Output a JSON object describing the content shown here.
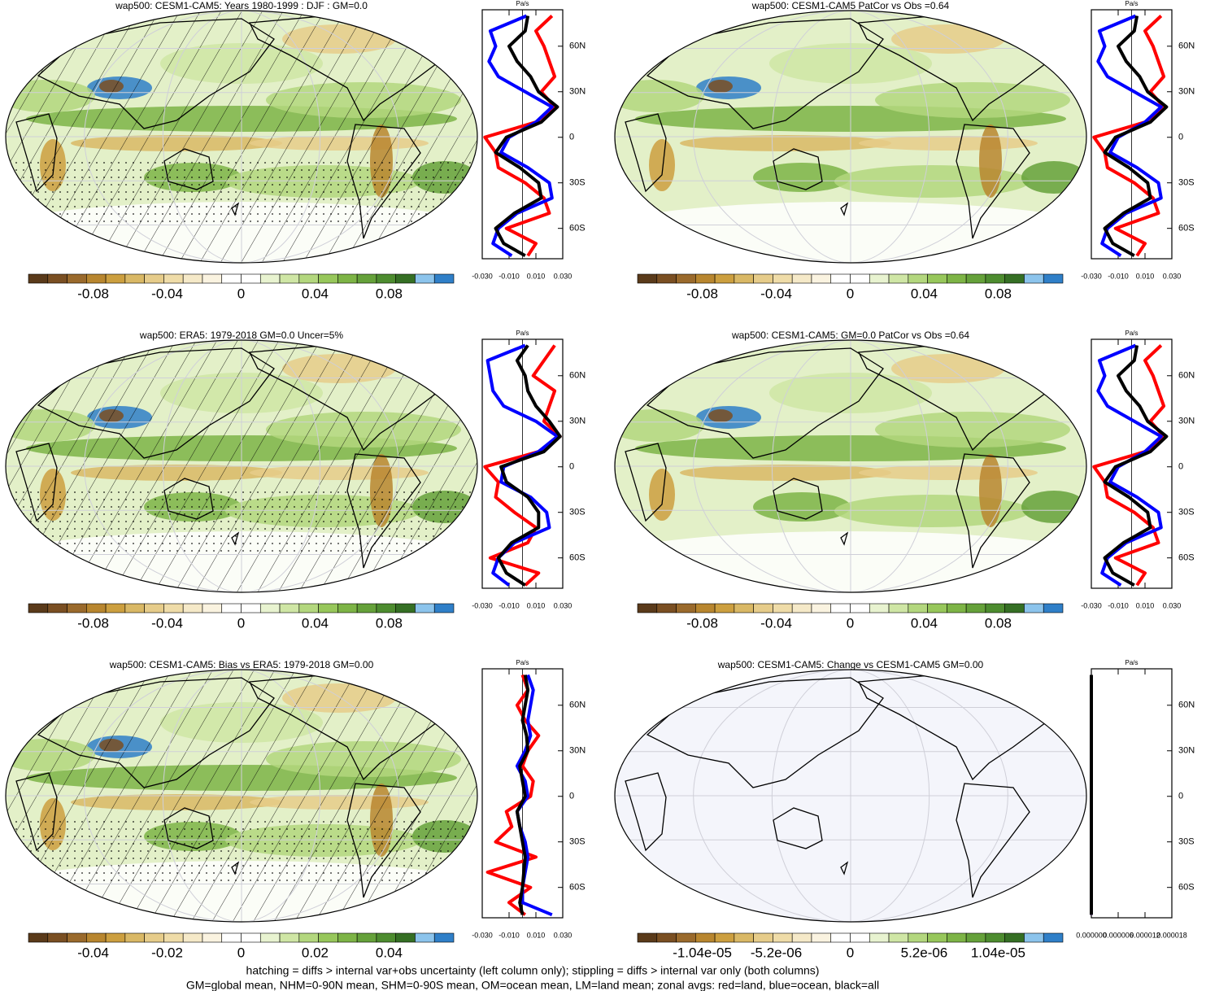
{
  "palette": [
    "#5a3a1a",
    "#7a4f22",
    "#9a6a2c",
    "#b8862f",
    "#cc9f3f",
    "#d9b865",
    "#e6cc8a",
    "#efdca8",
    "#f5e9c8",
    "#faf3e0",
    "#ffffff",
    "#ffffff",
    "#e8f3d0",
    "#cfe6a5",
    "#b3d77e",
    "#97c75b",
    "#7db446",
    "#65a13a",
    "#4d8c2f",
    "#356f24",
    "#8cc4ec",
    "#2f7fc8"
  ],
  "panels": [
    {
      "title": "wap500: CESM1-CAM5: Years 1980-1999 : DJF : GM=0.0",
      "field_shown": true,
      "hatching": true,
      "stippling": true,
      "colorbar": {
        "lim": [
          -0.115,
          0.115
        ],
        "ticks": [
          -0.08,
          -0.04,
          0,
          0.04,
          0.08
        ]
      },
      "profile": {
        "unit": "Pa/s",
        "xlim": [
          -0.03,
          0.03
        ],
        "ylim": [
          -80,
          84
        ],
        "xticks": [
          {
            "value": -0.03,
            "label": "-0.030"
          },
          {
            "value": -0.01,
            "label": "-0.010"
          },
          {
            "value": 0.01,
            "label": "0.010"
          },
          {
            "value": 0.03,
            "label": "0.030"
          }
        ],
        "yticks": [
          {
            "value": 60,
            "label": "60N"
          },
          {
            "value": 30,
            "label": "30N"
          },
          0,
          {
            "value": -30,
            "label": "30S"
          },
          {
            "value": -60,
            "label": "60S"
          }
        ],
        "lat": [
          80,
          70,
          60,
          50,
          40,
          30,
          20,
          10,
          0,
          -10,
          -20,
          -30,
          -40,
          -50,
          -60,
          -70,
          -78
        ],
        "series": [
          {
            "color": "#ff0000",
            "values": [
              0.022,
              0.01,
              0.016,
              0.02,
              0.024,
              0.014,
              0.024,
              0.01,
              -0.028,
              -0.02,
              -0.018,
              0.002,
              0.016,
              0.02,
              -0.012,
              0.01,
              0.004
            ]
          },
          {
            "color": "#0000ff",
            "values": [
              0.003,
              -0.024,
              -0.02,
              -0.025,
              -0.018,
              0.002,
              0.022,
              0.01,
              -0.01,
              -0.016,
              0.004,
              0.02,
              0.022,
              -0.004,
              -0.018,
              -0.022,
              -0.008
            ]
          },
          {
            "color": "#000000",
            "values": [
              0.004,
              0.002,
              -0.01,
              -0.004,
              0.006,
              0.012,
              0.026,
              0.014,
              -0.012,
              -0.02,
              -0.002,
              0.012,
              0.014,
              -0.006,
              -0.02,
              -0.014,
              0.002
            ]
          }
        ]
      }
    },
    {
      "title": "wap500: CESM1-CAM5 PatCor vs Obs =0.64",
      "field_shown": true,
      "hatching": false,
      "stippling": false,
      "colorbar": {
        "lim": [
          -0.115,
          0.115
        ],
        "ticks": [
          -0.08,
          -0.04,
          0,
          0.04,
          0.08
        ]
      },
      "profile": {
        "unit": "Pa/s",
        "xlim": [
          -0.03,
          0.03
        ],
        "ylim": [
          -80,
          84
        ],
        "xticks": [
          {
            "value": -0.03,
            "label": "-0.030"
          },
          {
            "value": -0.01,
            "label": "-0.010"
          },
          {
            "value": 0.01,
            "label": "0.010"
          },
          {
            "value": 0.03,
            "label": "0.030"
          }
        ],
        "yticks": [
          {
            "value": 60,
            "label": "60N"
          },
          {
            "value": 30,
            "label": "30N"
          },
          0,
          {
            "value": -30,
            "label": "30S"
          },
          {
            "value": -60,
            "label": "60S"
          }
        ],
        "lat": [
          80,
          70,
          60,
          50,
          40,
          30,
          20,
          10,
          0,
          -10,
          -20,
          -30,
          -40,
          -50,
          -60,
          -70,
          -78
        ],
        "series": [
          {
            "color": "#ff0000",
            "values": [
              0.022,
              0.01,
              0.016,
              0.02,
              0.024,
              0.014,
              0.024,
              0.01,
              -0.028,
              -0.02,
              -0.018,
              0.002,
              0.016,
              0.02,
              -0.012,
              0.01,
              0.004
            ]
          },
          {
            "color": "#0000ff",
            "values": [
              0.003,
              -0.024,
              -0.02,
              -0.025,
              -0.018,
              0.002,
              0.022,
              0.01,
              -0.01,
              -0.016,
              0.004,
              0.02,
              0.022,
              -0.004,
              -0.018,
              -0.022,
              -0.008
            ]
          },
          {
            "color": "#000000",
            "values": [
              0.004,
              0.002,
              -0.01,
              -0.004,
              0.006,
              0.012,
              0.026,
              0.014,
              -0.012,
              -0.02,
              -0.002,
              0.012,
              0.014,
              -0.006,
              -0.02,
              -0.014,
              0.002
            ]
          }
        ]
      }
    },
    {
      "title": "wap500: ERA5: 1979-2018 GM=0.0 Uncer=5%",
      "field_shown": true,
      "hatching": true,
      "stippling": true,
      "colorbar": {
        "lim": [
          -0.115,
          0.115
        ],
        "ticks": [
          -0.08,
          -0.04,
          0,
          0.04,
          0.08
        ]
      },
      "profile": {
        "unit": "Pa/s",
        "xlim": [
          -0.03,
          0.03
        ],
        "ylim": [
          -80,
          84
        ],
        "xticks": [
          {
            "value": -0.03,
            "label": "-0.030"
          },
          {
            "value": -0.01,
            "label": "-0.010"
          },
          {
            "value": 0.01,
            "label": "0.010"
          },
          {
            "value": 0.03,
            "label": "0.030"
          }
        ],
        "yticks": [
          {
            "value": 60,
            "label": "60N"
          },
          {
            "value": 30,
            "label": "30N"
          },
          0,
          {
            "value": -30,
            "label": "30S"
          },
          {
            "value": -60,
            "label": "60S"
          }
        ],
        "lat": [
          80,
          70,
          60,
          50,
          40,
          30,
          20,
          10,
          0,
          -10,
          -20,
          -30,
          -40,
          -50,
          -60,
          -70,
          -78
        ],
        "series": [
          {
            "color": "#ff0000",
            "values": [
              0.024,
              0.016,
              0.008,
              0.024,
              0.02,
              0.016,
              0.028,
              0.012,
              -0.028,
              -0.018,
              -0.02,
              -0.006,
              0.01,
              0.004,
              -0.024,
              0.012,
              0.002
            ]
          },
          {
            "color": "#0000ff",
            "values": [
              0.002,
              -0.026,
              -0.024,
              -0.022,
              -0.014,
              0.01,
              0.026,
              0.012,
              -0.014,
              -0.016,
              0.006,
              0.018,
              0.02,
              -0.006,
              -0.018,
              -0.022,
              -0.01
            ]
          },
          {
            "color": "#000000",
            "values": [
              0.004,
              -0.004,
              0.002,
              0.004,
              0.01,
              0.02,
              0.028,
              0.016,
              -0.016,
              -0.012,
              0.004,
              0.012,
              0.012,
              -0.008,
              -0.018,
              -0.012,
              0.002
            ]
          }
        ]
      }
    },
    {
      "title": "wap500: CESM1-CAM5: GM=0.0 PatCor vs Obs =0.64",
      "field_shown": true,
      "hatching": false,
      "stippling": false,
      "colorbar": {
        "lim": [
          -0.115,
          0.115
        ],
        "ticks": [
          -0.08,
          -0.04,
          0,
          0.04,
          0.08
        ]
      },
      "profile": {
        "unit": "Pa/s",
        "xlim": [
          -0.03,
          0.03
        ],
        "ylim": [
          -80,
          84
        ],
        "xticks": [
          {
            "value": -0.03,
            "label": "-0.030"
          },
          {
            "value": -0.01,
            "label": "-0.010"
          },
          {
            "value": 0.01,
            "label": "0.010"
          },
          {
            "value": 0.03,
            "label": "0.030"
          }
        ],
        "yticks": [
          {
            "value": 60,
            "label": "60N"
          },
          {
            "value": 30,
            "label": "30N"
          },
          0,
          {
            "value": -30,
            "label": "30S"
          },
          {
            "value": -60,
            "label": "60S"
          }
        ],
        "lat": [
          80,
          70,
          60,
          50,
          40,
          30,
          20,
          10,
          0,
          -10,
          -20,
          -30,
          -40,
          -50,
          -60,
          -70,
          -78
        ],
        "series": [
          {
            "color": "#ff0000",
            "values": [
              0.022,
              0.01,
              0.016,
              0.02,
              0.024,
              0.014,
              0.024,
              0.01,
              -0.028,
              -0.02,
              -0.018,
              0.002,
              0.016,
              0.02,
              -0.012,
              0.01,
              0.004
            ]
          },
          {
            "color": "#0000ff",
            "values": [
              0.003,
              -0.024,
              -0.02,
              -0.025,
              -0.018,
              0.002,
              0.022,
              0.01,
              -0.01,
              -0.016,
              0.004,
              0.02,
              0.022,
              -0.004,
              -0.018,
              -0.022,
              -0.008
            ]
          },
          {
            "color": "#000000",
            "values": [
              0.004,
              0.002,
              -0.01,
              -0.004,
              0.006,
              0.012,
              0.026,
              0.014,
              -0.012,
              -0.02,
              -0.002,
              0.012,
              0.014,
              -0.006,
              -0.02,
              -0.014,
              0.002
            ]
          }
        ]
      }
    },
    {
      "title": "wap500: CESM1-CAM5: Bias vs ERA5: 1979-2018 GM=0.00",
      "field_shown": true,
      "hatching": true,
      "stippling": true,
      "colorbar": {
        "lim": [
          -0.0575,
          0.0575
        ],
        "ticks": [
          -0.04,
          -0.02,
          0,
          0.02,
          0.04
        ]
      },
      "profile": {
        "unit": "Pa/s",
        "xlim": [
          -0.03,
          0.03
        ],
        "ylim": [
          -80,
          84
        ],
        "xticks": [
          {
            "value": -0.03,
            "label": "-0.030"
          },
          {
            "value": -0.01,
            "label": "-0.010"
          },
          {
            "value": 0.01,
            "label": "0.010"
          },
          {
            "value": 0.03,
            "label": "0.030"
          }
        ],
        "yticks": [
          {
            "value": 60,
            "label": "60N"
          },
          {
            "value": 30,
            "label": "30N"
          },
          0,
          {
            "value": -30,
            "label": "30S"
          },
          {
            "value": -60,
            "label": "60S"
          }
        ],
        "lat": [
          80,
          70,
          60,
          50,
          40,
          30,
          20,
          10,
          0,
          -10,
          -20,
          -30,
          -40,
          -50,
          -60,
          -70,
          -78
        ],
        "series": [
          {
            "color": "#ff0000",
            "values": [
              0.0,
              0.004,
              -0.004,
              0.002,
              0.012,
              0.004,
              0.0,
              0.008,
              0.006,
              -0.012,
              -0.008,
              -0.02,
              0.01,
              -0.026,
              0.006,
              -0.01,
              0.002
            ]
          },
          {
            "color": "#0000ff",
            "values": [
              0.004,
              0.008,
              0.006,
              0.004,
              0.006,
              0.002,
              -0.004,
              0.002,
              0.004,
              -0.004,
              -0.002,
              0.002,
              0.004,
              0.002,
              0.0,
              0.0,
              0.022
            ]
          },
          {
            "color": "#000000",
            "values": [
              0.002,
              0.004,
              0.002,
              0.0,
              0.003,
              0.004,
              -0.002,
              0.0,
              0.002,
              -0.004,
              -0.002,
              0.0,
              0.002,
              0.001,
              0.0,
              -0.002,
              0.0
            ]
          }
        ]
      }
    },
    {
      "title": "wap500: CESM1-CAM5: Change vs CESM1-CAM5 GM=0.00",
      "field_shown": false,
      "hatching": false,
      "stippling": false,
      "colorbar": {
        "lim": [
          -1.495e-05,
          1.495e-05
        ],
        "ticks": [
          {
            "value": -1.04e-05,
            "label": "-1.04e-05"
          },
          {
            "value": -5.2e-06,
            "label": "-5.2e-06"
          },
          0,
          {
            "value": 5.2e-06,
            "label": "5.2e-06"
          },
          {
            "value": 1.04e-05,
            "label": "1.04e-05"
          }
        ]
      },
      "profile": {
        "unit": "Pa/s",
        "xlim": [
          0,
          1.8e-05
        ],
        "ylim": [
          -80,
          84
        ],
        "xticks": [
          {
            "value": 0,
            "label": "0.000000"
          },
          {
            "value": 6e-06,
            "label": "0.000006"
          },
          {
            "value": 1.2e-05,
            "label": "0.000012"
          },
          {
            "value": 1.8e-05,
            "label": "0.000018"
          }
        ],
        "yticks": [
          {
            "value": 60,
            "label": "60N"
          },
          {
            "value": 30,
            "label": "30N"
          },
          0,
          {
            "value": -30,
            "label": "30S"
          },
          {
            "value": -60,
            "label": "60S"
          }
        ],
        "lat": [
          80,
          70,
          60,
          50,
          40,
          30,
          20,
          10,
          0,
          -10,
          -20,
          -30,
          -40,
          -50,
          -60,
          -70,
          -78
        ],
        "series": [
          {
            "color": "#ff0000",
            "values": [
              0,
              0,
              0,
              0,
              0,
              0,
              0,
              0,
              0,
              0,
              0,
              0,
              0,
              0,
              0,
              0,
              0
            ]
          },
          {
            "color": "#0000ff",
            "values": [
              0,
              0,
              0,
              0,
              0,
              0,
              0,
              0,
              0,
              0,
              0,
              0,
              0,
              0,
              0,
              0,
              0
            ]
          },
          {
            "color": "#000000",
            "values": [
              0,
              0,
              0,
              0,
              0,
              0,
              0,
              0,
              0,
              0,
              0,
              0,
              0,
              0,
              0,
              0,
              0
            ]
          }
        ]
      }
    }
  ],
  "footer": [
    "hatching = diffs > internal var+obs uncertainty (left column only); stippling = diffs > internal var only (both columns)",
    "GM=global mean, NHM=0-90N mean, SHM=0-90S mean, OM=ocean mean, LM=land mean; zonal avgs: red=land, blue=ocean, black=all"
  ]
}
